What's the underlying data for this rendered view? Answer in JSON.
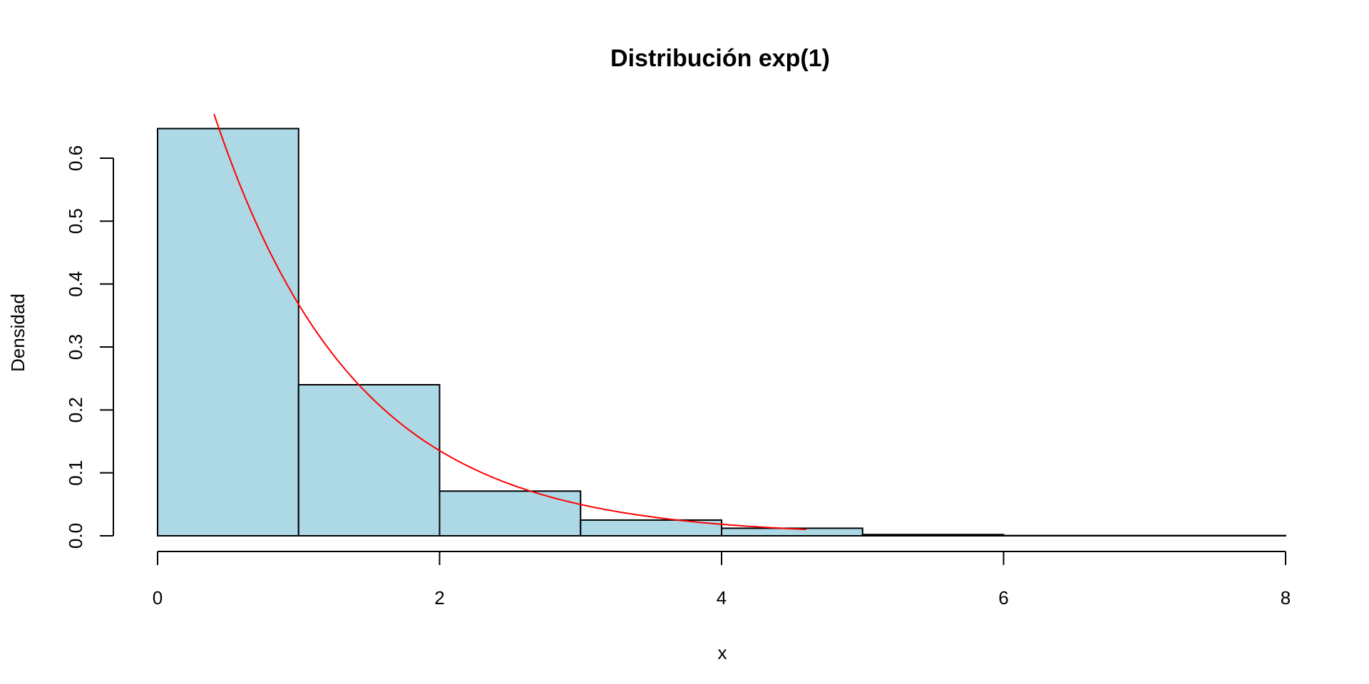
{
  "chart_data": {
    "type": "bar",
    "subtype": "histogram",
    "title": "Distribución exp(1)",
    "xlabel": "x",
    "ylabel": "Densidad",
    "xlim": [
      0,
      8
    ],
    "ylim": [
      0,
      0.67
    ],
    "x_ticks": [
      "0",
      "2",
      "4",
      "6",
      "8"
    ],
    "y_ticks": [
      "0.0",
      "0.1",
      "0.2",
      "0.3",
      "0.4",
      "0.5",
      "0.6"
    ],
    "bins": [
      [
        0,
        1
      ],
      [
        1,
        2
      ],
      [
        2,
        3
      ],
      [
        3,
        4
      ],
      [
        4,
        5
      ],
      [
        5,
        6
      ],
      [
        6,
        7
      ],
      [
        7,
        8
      ]
    ],
    "values": [
      0.647,
      0.24,
      0.071,
      0.025,
      0.012,
      0.002,
      0.0004,
      0.0004
    ],
    "bar_color": "#ADD8E6",
    "curve": {
      "name": "exp(1) density",
      "formula": "exp(-x)",
      "x_range": [
        0.4,
        4.6
      ],
      "color": "#FF0000"
    },
    "grid": false,
    "legend": "none"
  }
}
